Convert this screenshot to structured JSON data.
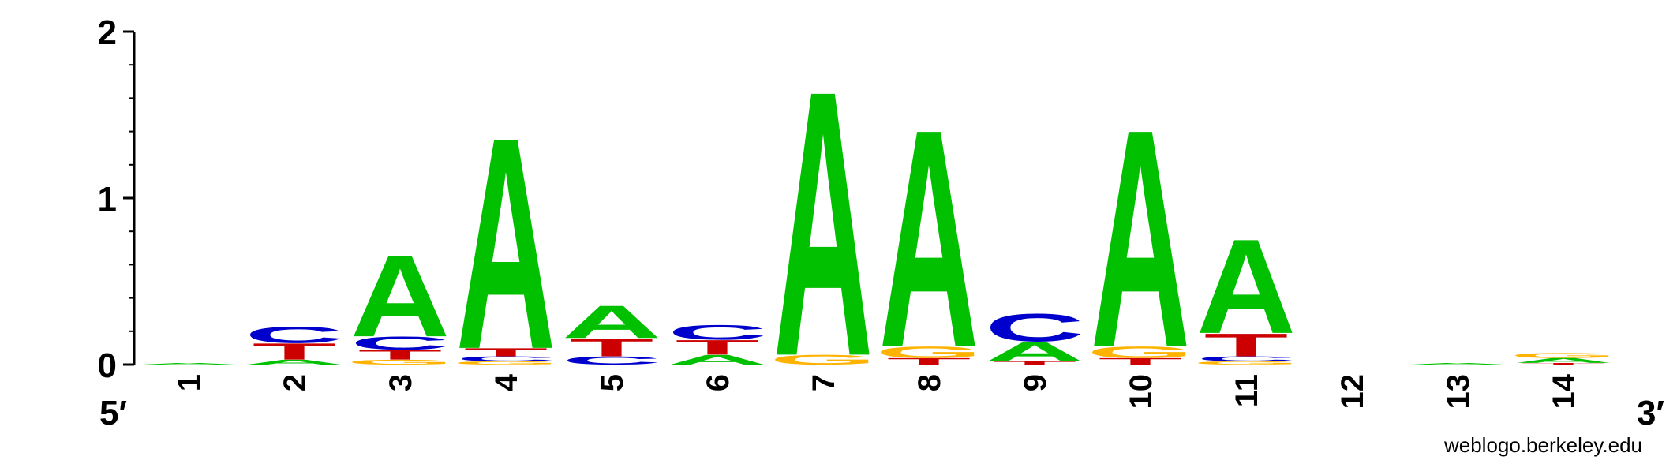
{
  "chart_data": {
    "type": "sequence-logo",
    "y_ticks": [
      "0",
      "1",
      "2"
    ],
    "ylim": [
      0,
      2
    ],
    "end_labels": {
      "left": "5′",
      "right": "3′"
    },
    "colors": {
      "A": "#00c000",
      "C": "#0000cc",
      "G": "#ffb300",
      "T": "#cc0000"
    },
    "positions": [
      {
        "label": "1",
        "stack": [
          [
            "A",
            0.01
          ]
        ]
      },
      {
        "label": "2",
        "stack": [
          [
            "A",
            0.03
          ],
          [
            "T",
            0.1
          ],
          [
            "C",
            0.1
          ]
        ]
      },
      {
        "label": "3",
        "stack": [
          [
            "G",
            0.03
          ],
          [
            "T",
            0.06
          ],
          [
            "C",
            0.08
          ],
          [
            "A",
            0.5
          ]
        ]
      },
      {
        "label": "4",
        "stack": [
          [
            "G",
            0.02
          ],
          [
            "C",
            0.03
          ],
          [
            "T",
            0.05
          ],
          [
            "A",
            1.3
          ]
        ]
      },
      {
        "label": "5",
        "stack": [
          [
            "C",
            0.05
          ],
          [
            "T",
            0.11
          ],
          [
            "A",
            0.2
          ]
        ]
      },
      {
        "label": "6",
        "stack": [
          [
            "A",
            0.06
          ],
          [
            "T",
            0.09
          ],
          [
            "C",
            0.09
          ]
        ]
      },
      {
        "label": "7",
        "stack": [
          [
            "G",
            0.06
          ],
          [
            "A",
            1.63
          ]
        ]
      },
      {
        "label": "8",
        "stack": [
          [
            "T",
            0.04
          ],
          [
            "G",
            0.07
          ],
          [
            "A",
            1.34
          ]
        ]
      },
      {
        "label": "9",
        "stack": [
          [
            "T",
            0.02
          ],
          [
            "A",
            0.12
          ],
          [
            "C",
            0.17
          ]
        ]
      },
      {
        "label": "10",
        "stack": [
          [
            "T",
            0.04
          ],
          [
            "G",
            0.07
          ],
          [
            "A",
            1.34
          ]
        ]
      },
      {
        "label": "11",
        "stack": [
          [
            "G",
            0.02
          ],
          [
            "C",
            0.03
          ],
          [
            "T",
            0.14
          ],
          [
            "A",
            0.58
          ]
        ]
      },
      {
        "label": "12",
        "stack": []
      },
      {
        "label": "13",
        "stack": [
          [
            "A",
            0.01
          ]
        ]
      },
      {
        "label": "14",
        "stack": [
          [
            "T",
            0.01
          ],
          [
            "A",
            0.03
          ],
          [
            "G",
            0.03
          ]
        ]
      }
    ]
  },
  "footer": {
    "credit": "weblogo.berkeley.edu"
  }
}
